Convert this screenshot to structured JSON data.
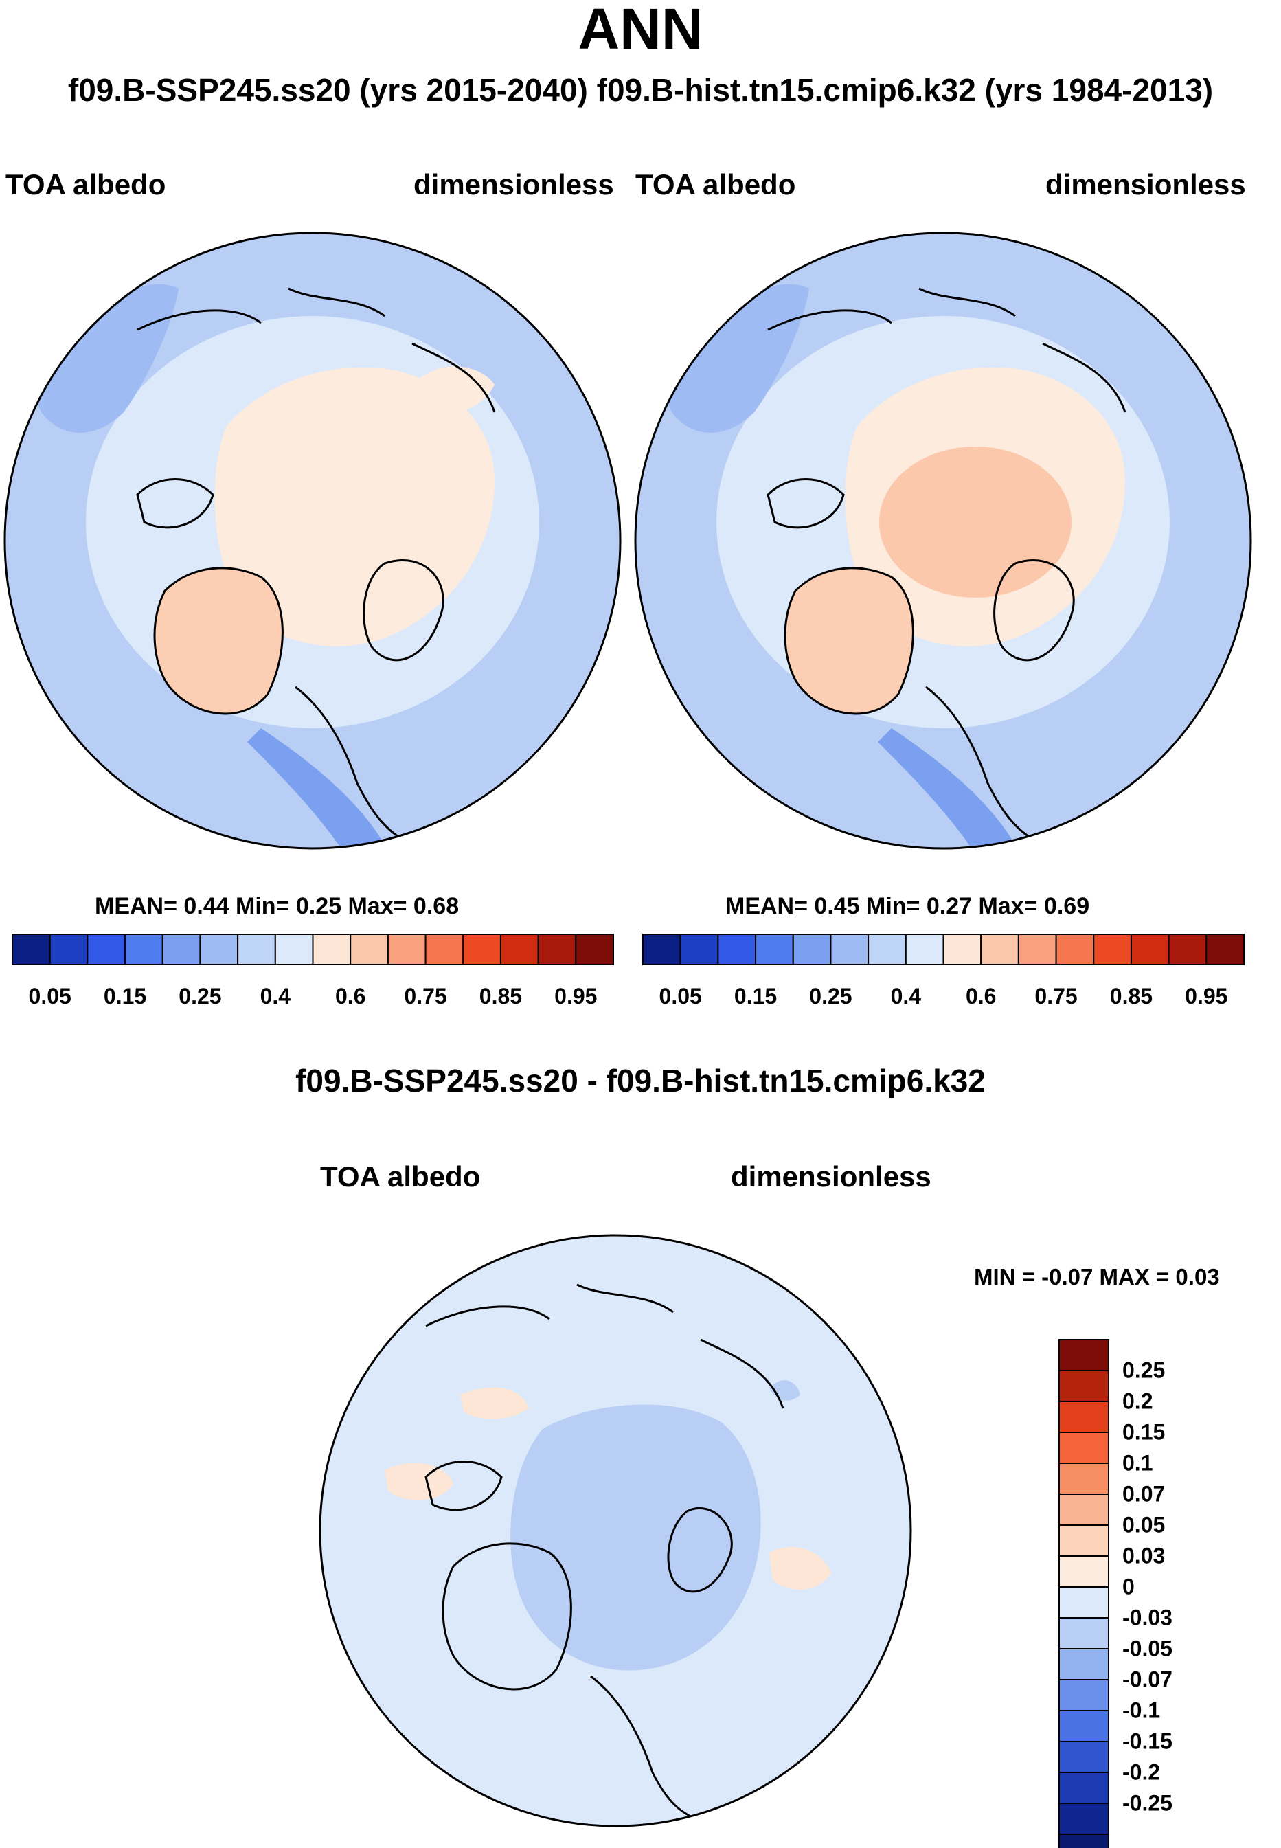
{
  "title": "ANN",
  "subtitle": "f09.B-SSP245.ss20 (yrs 2015-2040)  f09.B-hist.tn15.cmip6.k32 (yrs 1984-2013)",
  "colors": {
    "abs_scale": [
      "#0c1f85",
      "#1d3fc1",
      "#3158e6",
      "#4f7cee",
      "#7ba0f0",
      "#9ebcf3",
      "#bfd5f7",
      "#dce9fa",
      "#fde6d6",
      "#fcc8ac",
      "#f9a07f",
      "#f5774f",
      "#ec4a23",
      "#cf2c10",
      "#a81a0b",
      "#7d0b07"
    ],
    "diff_scale": [
      "#7d0b07",
      "#b4240c",
      "#e1401a",
      "#f46438",
      "#f78e63",
      "#f9b495",
      "#fcd4bc",
      "#fdebdd",
      "#dce9fa",
      "#b8cef5",
      "#92b2f0",
      "#6b90ec",
      "#4a72e4",
      "#3055cf",
      "#1c3bb3",
      "#0f2590",
      "#0a1a6e"
    ],
    "land_fill": "#fdebdd",
    "ocean_fill": "#dce9fa"
  },
  "panel_left": {
    "variable": "TOA albedo",
    "units": "dimensionless",
    "stats_text": "MEAN=   0.44  Min=   0.25  Max=   0.68",
    "colorbar_labels": [
      "0.05",
      "0.15",
      "0.25",
      "0.4",
      "0.6",
      "0.75",
      "0.85",
      "0.95"
    ]
  },
  "panel_right": {
    "variable": "TOA albedo",
    "units": "dimensionless",
    "stats_text": "MEAN=   0.45  Min=   0.27  Max=   0.69",
    "colorbar_labels": [
      "0.05",
      "0.15",
      "0.25",
      "0.4",
      "0.6",
      "0.75",
      "0.85",
      "0.95"
    ]
  },
  "diff_panel": {
    "title": "f09.B-SSP245.ss20 - f09.B-hist.tn15.cmip6.k32",
    "variable": "TOA albedo",
    "units": "dimensionless",
    "minmax_text": "MIN =  -0.07 MAX =   0.03",
    "colorbar_labels": [
      "0.25",
      "0.2",
      "0.15",
      "0.1",
      "0.07",
      "0.05",
      "0.03",
      "0",
      "-0.03",
      "-0.05",
      "-0.07",
      "-0.1",
      "-0.15",
      "-0.2",
      "-0.25"
    ]
  }
}
